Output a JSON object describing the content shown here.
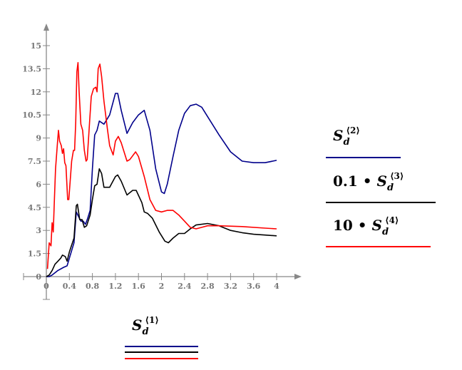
{
  "chart_data": {
    "type": "line",
    "xlim": [
      0,
      4
    ],
    "ylim": [
      0,
      15
    ],
    "x_ticks": [
      "0",
      "0.4",
      "0.8",
      "1.2",
      "1.6",
      "2",
      "2.4",
      "2.8",
      "3.2",
      "3.6",
      "4"
    ],
    "y_ticks": [
      "0",
      "1.5",
      "3",
      "4.5",
      "6",
      "7.5",
      "9",
      "10.5",
      "12",
      "13.5",
      "15"
    ],
    "grid": false,
    "x_axis_label": {
      "base": "S",
      "sub": "d",
      "sup": "⟨1⟩"
    },
    "series": [
      {
        "name": "S_d⟨2⟩",
        "legend": {
          "prefix": "",
          "base": "S",
          "sub": "d",
          "sup": "⟨2⟩"
        },
        "color": "#00008b",
        "points": [
          [
            0,
            0
          ],
          [
            0.05,
            0
          ],
          [
            0.1,
            0.1
          ],
          [
            0.2,
            0.4
          ],
          [
            0.3,
            0.6
          ],
          [
            0.36,
            0.7
          ],
          [
            0.4,
            1.2
          ],
          [
            0.48,
            2.2
          ],
          [
            0.52,
            4.2
          ],
          [
            0.56,
            3.9
          ],
          [
            0.6,
            3.6
          ],
          [
            0.64,
            3.6
          ],
          [
            0.68,
            3.4
          ],
          [
            0.72,
            3.8
          ],
          [
            0.76,
            4.3
          ],
          [
            0.8,
            7.0
          ],
          [
            0.84,
            9.2
          ],
          [
            0.88,
            9.5
          ],
          [
            0.92,
            10.1
          ],
          [
            1.0,
            9.9
          ],
          [
            1.1,
            10.5
          ],
          [
            1.2,
            11.9
          ],
          [
            1.24,
            11.9
          ],
          [
            1.3,
            10.8
          ],
          [
            1.4,
            9.3
          ],
          [
            1.5,
            10.0
          ],
          [
            1.6,
            10.5
          ],
          [
            1.7,
            10.8
          ],
          [
            1.8,
            9.5
          ],
          [
            1.9,
            7.0
          ],
          [
            2.0,
            5.5
          ],
          [
            2.05,
            5.4
          ],
          [
            2.1,
            6.0
          ],
          [
            2.2,
            7.8
          ],
          [
            2.3,
            9.5
          ],
          [
            2.4,
            10.6
          ],
          [
            2.5,
            11.1
          ],
          [
            2.6,
            11.2
          ],
          [
            2.7,
            11.0
          ],
          [
            2.8,
            10.4
          ],
          [
            3.0,
            9.2
          ],
          [
            3.2,
            8.1
          ],
          [
            3.4,
            7.5
          ],
          [
            3.6,
            7.4
          ],
          [
            3.8,
            7.4
          ],
          [
            4.0,
            7.55
          ]
        ]
      },
      {
        "name": "0.1·S_d⟨3⟩",
        "legend": {
          "prefix": "0.1 • ",
          "base": "S",
          "sub": "d",
          "sup": "⟨3⟩"
        },
        "color": "#000000",
        "points": [
          [
            0,
            0
          ],
          [
            0.05,
            0.1
          ],
          [
            0.1,
            0.4
          ],
          [
            0.15,
            0.8
          ],
          [
            0.2,
            1.0
          ],
          [
            0.25,
            1.2
          ],
          [
            0.28,
            1.4
          ],
          [
            0.33,
            1.3
          ],
          [
            0.36,
            1.0
          ],
          [
            0.4,
            1.6
          ],
          [
            0.48,
            2.5
          ],
          [
            0.52,
            4.6
          ],
          [
            0.54,
            4.7
          ],
          [
            0.58,
            3.7
          ],
          [
            0.62,
            3.7
          ],
          [
            0.66,
            3.2
          ],
          [
            0.7,
            3.3
          ],
          [
            0.76,
            4.0
          ],
          [
            0.8,
            5.0
          ],
          [
            0.84,
            5.9
          ],
          [
            0.88,
            6.0
          ],
          [
            0.92,
            7.0
          ],
          [
            0.96,
            6.7
          ],
          [
            1.0,
            5.8
          ],
          [
            1.1,
            5.8
          ],
          [
            1.2,
            6.5
          ],
          [
            1.24,
            6.6
          ],
          [
            1.3,
            6.2
          ],
          [
            1.4,
            5.3
          ],
          [
            1.5,
            5.6
          ],
          [
            1.56,
            5.6
          ],
          [
            1.66,
            4.8
          ],
          [
            1.7,
            4.2
          ],
          [
            1.76,
            4.1
          ],
          [
            1.84,
            3.8
          ],
          [
            1.96,
            2.9
          ],
          [
            2.06,
            2.3
          ],
          [
            2.12,
            2.2
          ],
          [
            2.2,
            2.5
          ],
          [
            2.3,
            2.8
          ],
          [
            2.4,
            2.8
          ],
          [
            2.5,
            3.1
          ],
          [
            2.6,
            3.35
          ],
          [
            2.8,
            3.45
          ],
          [
            3.0,
            3.3
          ],
          [
            3.2,
            3.0
          ],
          [
            3.4,
            2.85
          ],
          [
            3.6,
            2.75
          ],
          [
            3.8,
            2.7
          ],
          [
            4.0,
            2.65
          ]
        ]
      },
      {
        "name": "10·S_d⟨4⟩",
        "legend": {
          "prefix": "10 • ",
          "base": "S",
          "sub": "d",
          "sup": "⟨4⟩"
        },
        "color": "#ff0000",
        "points": [
          [
            0.02,
            0.5
          ],
          [
            0.05,
            2.2
          ],
          [
            0.08,
            2.0
          ],
          [
            0.1,
            3.5
          ],
          [
            0.12,
            2.9
          ],
          [
            0.14,
            5
          ],
          [
            0.16,
            7
          ],
          [
            0.19,
            8.5
          ],
          [
            0.21,
            9.5
          ],
          [
            0.23,
            8.8
          ],
          [
            0.26,
            8.5
          ],
          [
            0.28,
            8
          ],
          [
            0.3,
            8.3
          ],
          [
            0.32,
            7.4
          ],
          [
            0.34,
            7.2
          ],
          [
            0.37,
            5
          ],
          [
            0.39,
            5
          ],
          [
            0.41,
            6
          ],
          [
            0.44,
            7.5
          ],
          [
            0.47,
            8.2
          ],
          [
            0.49,
            8.2
          ],
          [
            0.51,
            10
          ],
          [
            0.53,
            13.3
          ],
          [
            0.55,
            13.9
          ],
          [
            0.57,
            12
          ],
          [
            0.6,
            9.9
          ],
          [
            0.63,
            9.5
          ],
          [
            0.66,
            8.2
          ],
          [
            0.69,
            7.5
          ],
          [
            0.71,
            7.6
          ],
          [
            0.75,
            10
          ],
          [
            0.78,
            11.7
          ],
          [
            0.82,
            12.2
          ],
          [
            0.86,
            12.3
          ],
          [
            0.88,
            12
          ],
          [
            0.9,
            13.5
          ],
          [
            0.93,
            13.8
          ],
          [
            0.96,
            13
          ],
          [
            1.0,
            11.4
          ],
          [
            1.06,
            9.6
          ],
          [
            1.1,
            8.5
          ],
          [
            1.16,
            7.9
          ],
          [
            1.2,
            8.8
          ],
          [
            1.25,
            9.1
          ],
          [
            1.3,
            8.7
          ],
          [
            1.4,
            7.5
          ],
          [
            1.45,
            7.6
          ],
          [
            1.55,
            8.1
          ],
          [
            1.6,
            7.8
          ],
          [
            1.7,
            6.5
          ],
          [
            1.8,
            5
          ],
          [
            1.9,
            4.3
          ],
          [
            2.0,
            4.2
          ],
          [
            2.1,
            4.3
          ],
          [
            2.2,
            4.3
          ],
          [
            2.3,
            4.0
          ],
          [
            2.4,
            3.6
          ],
          [
            2.5,
            3.2
          ],
          [
            2.6,
            3.1
          ],
          [
            2.7,
            3.2
          ],
          [
            2.8,
            3.3
          ],
          [
            3.0,
            3.3
          ],
          [
            3.4,
            3.25
          ],
          [
            3.8,
            3.15
          ],
          [
            4.0,
            3.1
          ]
        ]
      }
    ]
  }
}
